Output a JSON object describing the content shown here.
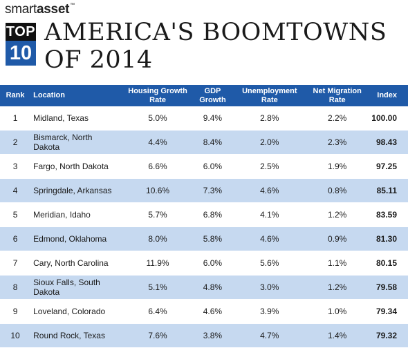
{
  "brand": {
    "light": "smart",
    "bold": "asset",
    "tm": "™"
  },
  "badge": {
    "top": "TOP",
    "number": "10"
  },
  "title": {
    "line1": "AMERICA'S BOOMTOWNS",
    "line2": "OF 2014"
  },
  "table": {
    "headers": [
      "Rank",
      "Location",
      "Housing Growth Rate",
      "GDP Growth",
      "Unemployment Rate",
      "Net Migration Rate",
      "Index"
    ],
    "rows": [
      {
        "rank": "1",
        "location": "Midland, Texas",
        "housing": "5.0%",
        "gdp": "9.4%",
        "unemployment": "2.8%",
        "migration": "2.2%",
        "index": "100.00"
      },
      {
        "rank": "2",
        "location": "Bismarck, North Dakota",
        "housing": "4.4%",
        "gdp": "8.4%",
        "unemployment": "2.0%",
        "migration": "2.3%",
        "index": "98.43"
      },
      {
        "rank": "3",
        "location": "Fargo, North Dakota",
        "housing": "6.6%",
        "gdp": "6.0%",
        "unemployment": "2.5%",
        "migration": "1.9%",
        "index": "97.25"
      },
      {
        "rank": "4",
        "location": "Springdale, Arkansas",
        "housing": "10.6%",
        "gdp": "7.3%",
        "unemployment": "4.6%",
        "migration": "0.8%",
        "index": "85.11"
      },
      {
        "rank": "5",
        "location": "Meridian, Idaho",
        "housing": "5.7%",
        "gdp": "6.8%",
        "unemployment": "4.1%",
        "migration": "1.2%",
        "index": "83.59"
      },
      {
        "rank": "6",
        "location": "Edmond, Oklahoma",
        "housing": "8.0%",
        "gdp": "5.8%",
        "unemployment": "4.6%",
        "migration": "0.9%",
        "index": "81.30"
      },
      {
        "rank": "7",
        "location": "Cary, North Carolina",
        "housing": "11.9%",
        "gdp": "6.0%",
        "unemployment": "5.6%",
        "migration": "1.1%",
        "index": "80.15"
      },
      {
        "rank": "8",
        "location": "Sioux Falls, South Dakota",
        "housing": "5.1%",
        "gdp": "4.8%",
        "unemployment": "3.0%",
        "migration": "1.2%",
        "index": "79.58"
      },
      {
        "rank": "9",
        "location": "Loveland, Colorado",
        "housing": "6.4%",
        "gdp": "4.6%",
        "unemployment": "3.9%",
        "migration": "1.0%",
        "index": "79.34"
      },
      {
        "rank": "10",
        "location": "Round Rock, Texas",
        "housing": "7.6%",
        "gdp": "3.8%",
        "unemployment": "4.7%",
        "migration": "1.4%",
        "index": "79.32"
      }
    ]
  },
  "colors": {
    "header_bg": "#1f5aa8",
    "alt_row": "#c6d9f0",
    "badge_top": "#111111"
  }
}
